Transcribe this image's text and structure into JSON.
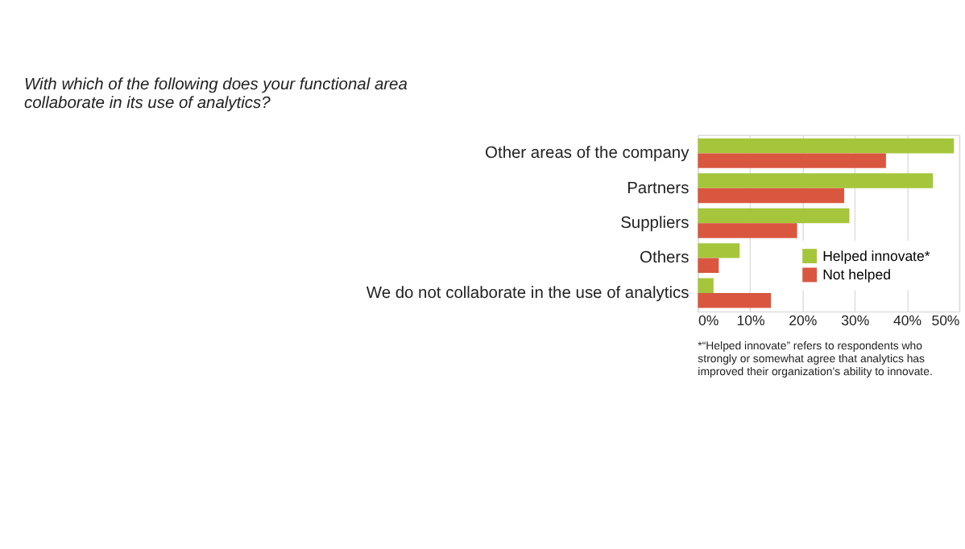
{
  "chart_data": {
    "type": "bar",
    "orientation": "horizontal",
    "title": "With which of the following does your functional area collaborate in its use of analytics?",
    "categories": [
      "Other areas of the company",
      "Partners",
      "Suppliers",
      "Others",
      "We do not collaborate in the use of analytics"
    ],
    "series": [
      {
        "name": "Helped innovate*",
        "color": "#a5c63b",
        "values": [
          49,
          45,
          29,
          8,
          3
        ]
      },
      {
        "name": "Not helped",
        "color": "#d9573f",
        "values": [
          36,
          28,
          19,
          4,
          14
        ]
      }
    ],
    "xlim": [
      0,
      50
    ],
    "xticks": [
      {
        "value": 0,
        "label": "0%"
      },
      {
        "value": 10,
        "label": "10%"
      },
      {
        "value": 20,
        "label": "20%"
      },
      {
        "value": 30,
        "label": "30%"
      },
      {
        "value": 40,
        "label": "40%"
      },
      {
        "value": 50,
        "label": "50%"
      }
    ],
    "grid": "x",
    "legend": "bottom right",
    "annotations": [
      "*“Helped innovate” refers to respondents who strongly or somewhat agree that analytics has improved their organization’s ability to innovate."
    ]
  }
}
